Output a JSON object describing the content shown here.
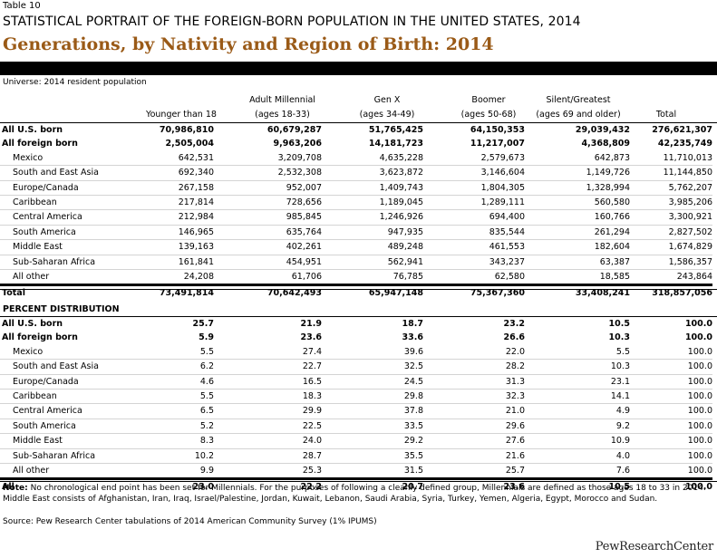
{
  "table_label": "Table 10",
  "supertitle": "STATISTICAL PORTRAIT OF THE FOREIGN-BORN POPULATION IN THE UNITED STATES, 2014",
  "title": "Generations, by Nativity and Region of Birth: 2014",
  "universe": "Universe: 2014 resident population",
  "columns": [
    {
      "line1": "",
      "line2": "Younger than 18"
    },
    {
      "line1": "Adult Millennial",
      "line2": "(ages 18-33)"
    },
    {
      "line1": "Gen X",
      "line2": "(ages 34-49)"
    },
    {
      "line1": "Boomer",
      "line2": "(ages 50-68)"
    },
    {
      "line1": "Silent/Greatest",
      "line2": "(ages 69 and older)"
    },
    {
      "line1": "",
      "line2": "Total"
    }
  ],
  "counts": {
    "all_us_born": {
      "label": "All U.S. born",
      "values": [
        "70,986,810",
        "60,679,287",
        "51,765,425",
        "64,150,353",
        "29,039,432",
        "276,621,307"
      ]
    },
    "all_foreign_born": {
      "label": "All foreign born",
      "values": [
        "2,505,004",
        "9,963,206",
        "14,181,723",
        "11,217,007",
        "4,368,809",
        "42,235,749"
      ]
    },
    "regions": [
      {
        "label": "Mexico",
        "values": [
          "642,531",
          "3,209,708",
          "4,635,228",
          "2,579,673",
          "642,873",
          "11,710,013"
        ]
      },
      {
        "label": "South and East Asia",
        "values": [
          "692,340",
          "2,532,308",
          "3,623,872",
          "3,146,604",
          "1,149,726",
          "11,144,850"
        ]
      },
      {
        "label": "Europe/Canada",
        "values": [
          "267,158",
          "952,007",
          "1,409,743",
          "1,804,305",
          "1,328,994",
          "5,762,207"
        ]
      },
      {
        "label": "Caribbean",
        "values": [
          "217,814",
          "728,656",
          "1,189,045",
          "1,289,111",
          "560,580",
          "3,985,206"
        ]
      },
      {
        "label": "Central America",
        "values": [
          "212,984",
          "985,845",
          "1,246,926",
          "694,400",
          "160,766",
          "3,300,921"
        ]
      },
      {
        "label": "South America",
        "values": [
          "146,965",
          "635,764",
          "947,935",
          "835,544",
          "261,294",
          "2,827,502"
        ]
      },
      {
        "label": "Middle East",
        "values": [
          "139,163",
          "402,261",
          "489,248",
          "461,553",
          "182,604",
          "1,674,829"
        ]
      },
      {
        "label": "Sub-Saharan Africa",
        "values": [
          "161,841",
          "454,951",
          "562,941",
          "343,237",
          "63,387",
          "1,586,357"
        ]
      },
      {
        "label": "All other",
        "values": [
          "24,208",
          "61,706",
          "76,785",
          "62,580",
          "18,585",
          "243,864"
        ]
      }
    ],
    "total": {
      "label": "Total",
      "values": [
        "73,491,814",
        "70,642,493",
        "65,947,148",
        "75,367,360",
        "33,408,241",
        "318,857,056"
      ]
    }
  },
  "percent_heading": "PERCENT DISTRIBUTION",
  "percent": {
    "all_us_born": {
      "label": "All U.S. born",
      "values": [
        "25.7",
        "21.9",
        "18.7",
        "23.2",
        "10.5",
        "100.0"
      ]
    },
    "all_foreign_born": {
      "label": "All foreign born",
      "values": [
        "5.9",
        "23.6",
        "33.6",
        "26.6",
        "10.3",
        "100.0"
      ]
    },
    "regions": [
      {
        "label": "Mexico",
        "values": [
          "5.5",
          "27.4",
          "39.6",
          "22.0",
          "5.5",
          "100.0"
        ]
      },
      {
        "label": "South and East Asia",
        "values": [
          "6.2",
          "22.7",
          "32.5",
          "28.2",
          "10.3",
          "100.0"
        ]
      },
      {
        "label": "Europe/Canada",
        "values": [
          "4.6",
          "16.5",
          "24.5",
          "31.3",
          "23.1",
          "100.0"
        ]
      },
      {
        "label": "Caribbean",
        "values": [
          "5.5",
          "18.3",
          "29.8",
          "32.3",
          "14.1",
          "100.0"
        ]
      },
      {
        "label": "Central America",
        "values": [
          "6.5",
          "29.9",
          "37.8",
          "21.0",
          "4.9",
          "100.0"
        ]
      },
      {
        "label": "South America",
        "values": [
          "5.2",
          "22.5",
          "33.5",
          "29.6",
          "9.2",
          "100.0"
        ]
      },
      {
        "label": "Middle East",
        "values": [
          "8.3",
          "24.0",
          "29.2",
          "27.6",
          "10.9",
          "100.0"
        ]
      },
      {
        "label": "Sub-Saharan Africa",
        "values": [
          "10.2",
          "28.7",
          "35.5",
          "21.6",
          "4.0",
          "100.0"
        ]
      },
      {
        "label": "All other",
        "values": [
          "9.9",
          "25.3",
          "31.5",
          "25.7",
          "7.6",
          "100.0"
        ]
      }
    ],
    "all": {
      "label": "All",
      "values": [
        "23.0",
        "22.2",
        "20.7",
        "23.6",
        "10.5",
        "100.0"
      ]
    }
  },
  "note_label": "Note:",
  "note_text": " No chronological end point has been set for Millennials. For the purposes of following a cleanly defined group, Millennials are defined as those ages 18 to 33 in 2014. Middle East consists of Afghanistan, Iran, Iraq, Israel/Palestine, Jordan, Kuwait, Lebanon, Saudi Arabia, Syria, Turkey, Yemen, Algeria, Egypt, Morocco and Sudan.",
  "source": "Source: Pew Research Center tabulations of 2014 American Community Survey (1% IPUMS)",
  "logo": "PewResearchCenter"
}
